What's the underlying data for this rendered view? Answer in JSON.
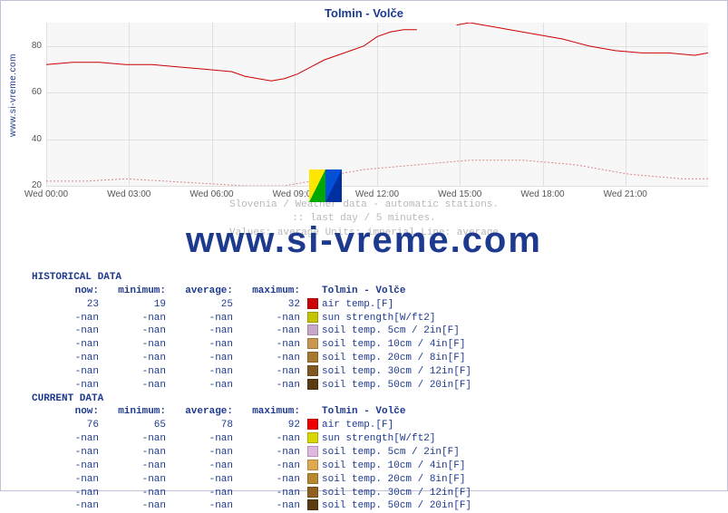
{
  "title": "Tolmin - Volče",
  "vertical_label": "www.si-vreme.com",
  "watermark": "www.si-vreme.com",
  "subtitle": [
    "Slovenia / Weather data - automatic stations.",
    ":: last day / 5 minutes.",
    "Values: average  Units: imperial  Line: average"
  ],
  "chart": {
    "type": "line",
    "background_color": "#f7f7f7",
    "grid_color": "#e0e0e0",
    "ylim": [
      20,
      90
    ],
    "yticks": [
      20,
      40,
      60,
      80
    ],
    "xticks": [
      "Wed 00:00",
      "Wed 03:00",
      "Wed 06:00",
      "Wed 09:00",
      "Wed 12:00",
      "Wed 15:00",
      "Wed 18:00",
      "Wed 21:00"
    ],
    "series": [
      {
        "name": "current air temp",
        "color": "#cc0000",
        "points": [
          [
            0,
            72
          ],
          [
            4,
            73
          ],
          [
            8,
            73
          ],
          [
            12,
            72
          ],
          [
            16,
            72
          ],
          [
            20,
            71
          ],
          [
            24,
            70
          ],
          [
            28,
            69
          ],
          [
            30,
            67
          ],
          [
            32,
            66
          ],
          [
            34,
            65
          ],
          [
            36,
            66
          ],
          [
            38,
            68
          ],
          [
            40,
            71
          ],
          [
            42,
            74
          ],
          [
            44,
            76
          ],
          [
            46,
            78
          ],
          [
            48,
            80
          ],
          [
            50,
            84
          ],
          [
            52,
            86
          ],
          [
            54,
            87
          ],
          [
            56,
            87
          ],
          [
            58,
            null
          ],
          [
            60,
            null
          ],
          [
            62,
            89
          ],
          [
            64,
            90
          ],
          [
            66,
            89
          ],
          [
            68,
            88
          ],
          [
            70,
            87
          ],
          [
            74,
            85
          ],
          [
            78,
            83
          ],
          [
            82,
            80
          ],
          [
            86,
            78
          ],
          [
            90,
            77
          ],
          [
            94,
            77
          ],
          [
            98,
            76
          ],
          [
            100,
            77
          ]
        ]
      },
      {
        "name": "historical air temp",
        "color": "#d88888",
        "dash": "2,2",
        "points": [
          [
            0,
            22
          ],
          [
            6,
            22
          ],
          [
            12,
            23
          ],
          [
            18,
            22
          ],
          [
            24,
            21
          ],
          [
            30,
            20
          ],
          [
            36,
            20
          ],
          [
            40,
            22
          ],
          [
            44,
            25
          ],
          [
            48,
            27
          ],
          [
            52,
            28
          ],
          [
            56,
            29
          ],
          [
            60,
            30
          ],
          [
            64,
            31
          ],
          [
            68,
            31
          ],
          [
            72,
            31
          ],
          [
            76,
            30
          ],
          [
            80,
            29
          ],
          [
            84,
            27
          ],
          [
            88,
            25
          ],
          [
            92,
            24
          ],
          [
            96,
            23
          ],
          [
            100,
            23
          ]
        ]
      }
    ]
  },
  "tables": [
    {
      "header": "HISTORICAL DATA",
      "station": "Tolmin - Volče",
      "columns": [
        "now:",
        "minimum:",
        "average:",
        "maximum:"
      ],
      "rows": [
        {
          "vals": [
            "23",
            "19",
            "25",
            "32"
          ],
          "swatch": "#cc0000",
          "label": "air temp.[F]"
        },
        {
          "vals": [
            "-nan",
            "-nan",
            "-nan",
            "-nan"
          ],
          "swatch": "#c4c400",
          "label": "sun strength[W/ft2]"
        },
        {
          "vals": [
            "-nan",
            "-nan",
            "-nan",
            "-nan"
          ],
          "swatch": "#c8a8c8",
          "label": "soil temp. 5cm / 2in[F]"
        },
        {
          "vals": [
            "-nan",
            "-nan",
            "-nan",
            "-nan"
          ],
          "swatch": "#c89850",
          "label": "soil temp. 10cm / 4in[F]"
        },
        {
          "vals": [
            "-nan",
            "-nan",
            "-nan",
            "-nan"
          ],
          "swatch": "#a87830",
          "label": "soil temp. 20cm / 8in[F]"
        },
        {
          "vals": [
            "-nan",
            "-nan",
            "-nan",
            "-nan"
          ],
          "swatch": "#805820",
          "label": "soil temp. 30cm / 12in[F]"
        },
        {
          "vals": [
            "-nan",
            "-nan",
            "-nan",
            "-nan"
          ],
          "swatch": "#5a3c10",
          "label": "soil temp. 50cm / 20in[F]"
        }
      ]
    },
    {
      "header": "CURRENT DATA",
      "station": "Tolmin - Volče",
      "columns": [
        "now:",
        "minimum:",
        "average:",
        "maximum:"
      ],
      "rows": [
        {
          "vals": [
            "76",
            "65",
            "78",
            "92"
          ],
          "swatch": "#ee0000",
          "label": "air temp.[F]"
        },
        {
          "vals": [
            "-nan",
            "-nan",
            "-nan",
            "-nan"
          ],
          "swatch": "#d8d800",
          "label": "sun strength[W/ft2]"
        },
        {
          "vals": [
            "-nan",
            "-nan",
            "-nan",
            "-nan"
          ],
          "swatch": "#e0b8e0",
          "label": "soil temp. 5cm / 2in[F]"
        },
        {
          "vals": [
            "-nan",
            "-nan",
            "-nan",
            "-nan"
          ],
          "swatch": "#e0a850",
          "label": "soil temp. 10cm / 4in[F]"
        },
        {
          "vals": [
            "-nan",
            "-nan",
            "-nan",
            "-nan"
          ],
          "swatch": "#b88830",
          "label": "soil temp. 20cm / 8in[F]"
        },
        {
          "vals": [
            "-nan",
            "-nan",
            "-nan",
            "-nan"
          ],
          "swatch": "#906020",
          "label": "soil temp. 30cm / 12in[F]"
        },
        {
          "vals": [
            "-nan",
            "-nan",
            "-nan",
            "-nan"
          ],
          "swatch": "#5a3c10",
          "label": "soil temp. 50cm / 20in[F]"
        }
      ]
    }
  ]
}
